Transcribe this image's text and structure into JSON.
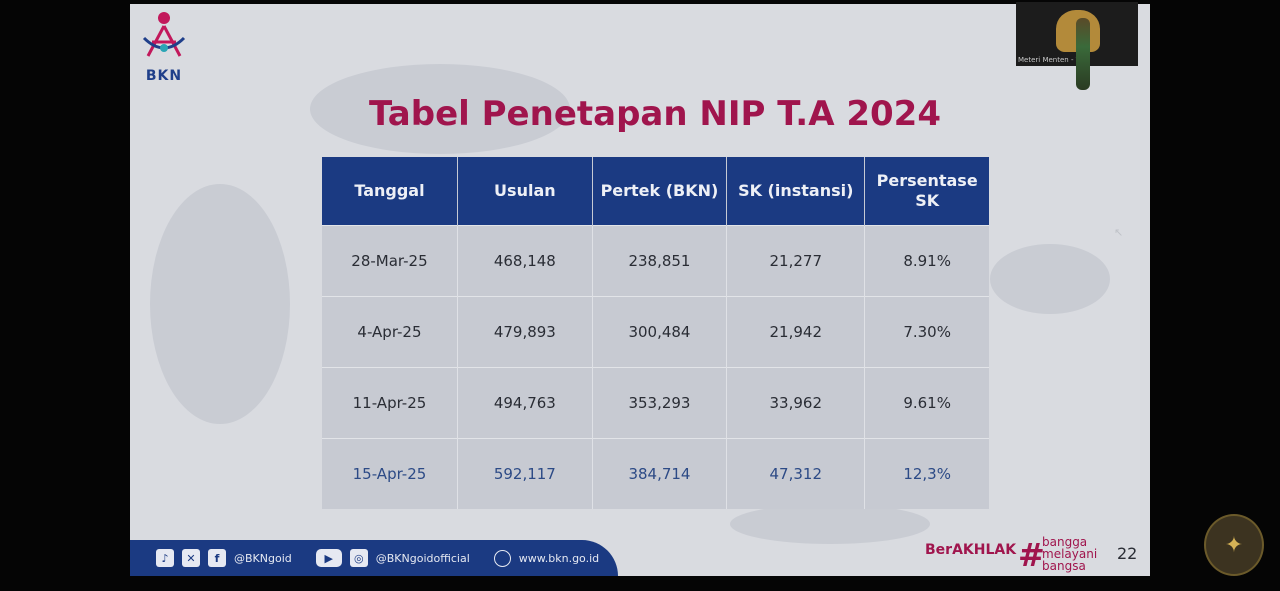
{
  "slide": {
    "logo_text": "BKN",
    "title": "Tabel Penetapan NIP T.A 2024",
    "table": {
      "headers": [
        "Tanggal",
        "Usulan",
        "Pertek (BKN)",
        "SK (instansi)",
        "Persentase SK"
      ],
      "rows": [
        [
          "28-Mar-25",
          "468,148",
          "238,851",
          "21,277",
          "8.91%"
        ],
        [
          "4-Apr-25",
          "479,893",
          "300,484",
          "21,942",
          "7.30%"
        ],
        [
          "11-Apr-25",
          "494,763",
          "353,293",
          "33,962",
          "9.61%"
        ],
        [
          "15-Apr-25",
          "592,117",
          "384,714",
          "47,312",
          "12,3%"
        ]
      ]
    },
    "footer": {
      "social_handle_1": "@BKNgoid",
      "social_handle_2": "@BKNgoidofficial",
      "website": "www.bkn.go.id",
      "icons": [
        "tiktok-icon",
        "x-icon",
        "facebook-icon",
        "youtube-icon",
        "instagram-icon",
        "globe-icon"
      ]
    },
    "berakhlak": "BerAKHLAK",
    "hashtag": "#",
    "bangga_lines": [
      "bangga",
      "melayani",
      "bangsa"
    ],
    "page_number": "22"
  },
  "video": {
    "participant_label": "Meteri Menten - V"
  },
  "colors": {
    "title": "#a0154d",
    "header_bg": "#1b3a82",
    "cell_bg": "#c7cad2"
  }
}
